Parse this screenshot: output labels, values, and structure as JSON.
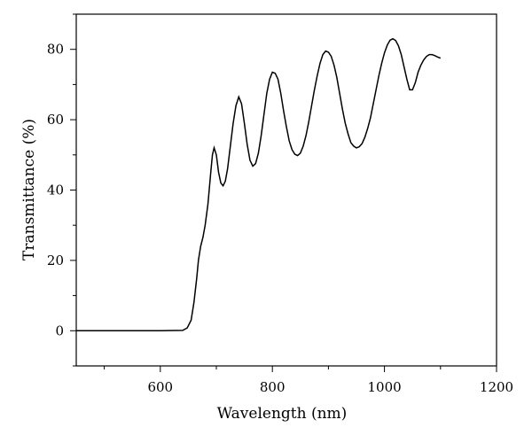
{
  "chart_data": {
    "type": "line",
    "title": "",
    "xlabel": "Wavelength (nm)",
    "ylabel": "Transmittance (%)",
    "xlim": [
      450,
      1200
    ],
    "ylim": [
      -10,
      90
    ],
    "xticks": [
      600,
      800,
      1000,
      1200
    ],
    "yticks": [
      0,
      20,
      40,
      60,
      80
    ],
    "xminor": [
      500,
      700,
      900,
      1100
    ],
    "yminor": [
      -10,
      10,
      30,
      50,
      70,
      90
    ],
    "grid": false,
    "legend": "none",
    "series": [
      {
        "color": "#000000",
        "x": [
          450,
          500,
          550,
          600,
          640,
          648,
          655,
          660,
          665,
          668,
          672,
          676,
          680,
          685,
          690,
          693,
          696,
          700,
          704,
          708,
          712,
          716,
          720,
          725,
          730,
          735,
          740,
          745,
          750,
          755,
          760,
          765,
          770,
          775,
          780,
          785,
          790,
          795,
          800,
          805,
          810,
          815,
          820,
          825,
          830,
          835,
          840,
          845,
          850,
          855,
          860,
          865,
          870,
          875,
          880,
          885,
          890,
          895,
          900,
          905,
          910,
          915,
          920,
          925,
          930,
          935,
          940,
          945,
          950,
          955,
          960,
          965,
          970,
          975,
          980,
          985,
          990,
          995,
          1000,
          1005,
          1010,
          1015,
          1020,
          1025,
          1030,
          1035,
          1040,
          1045,
          1050,
          1055,
          1060,
          1065,
          1070,
          1075,
          1080,
          1085,
          1090,
          1095,
          1100
        ],
        "y": [
          0,
          0,
          0,
          0,
          0.1,
          0.8,
          3,
          8,
          15,
          20,
          24,
          26.5,
          30,
          36,
          45,
          50,
          52,
          50,
          45,
          42,
          41.2,
          42.5,
          46,
          52.5,
          59,
          64,
          66.5,
          64.5,
          59,
          53,
          48.5,
          46.8,
          47.5,
          50.5,
          55.5,
          61.5,
          67.5,
          71.5,
          73.5,
          73.2,
          71.5,
          67.5,
          62.5,
          58,
          54,
          51.5,
          50.2,
          49.8,
          50.5,
          52.5,
          55.5,
          59.5,
          64,
          68.5,
          72.5,
          76,
          78.5,
          79.5,
          79.2,
          78,
          75.5,
          72,
          67.5,
          63,
          59,
          56,
          53.5,
          52.5,
          52,
          52.3,
          53.2,
          55,
          57.5,
          60.5,
          64.5,
          68.5,
          72.5,
          76,
          79,
          81.2,
          82.6,
          83,
          82.5,
          81,
          78.5,
          75,
          71.5,
          68.5,
          68.5,
          70.5,
          73.5,
          75.5,
          77,
          78,
          78.5,
          78.5,
          78.2,
          77.8,
          77.5
        ]
      }
    ]
  }
}
